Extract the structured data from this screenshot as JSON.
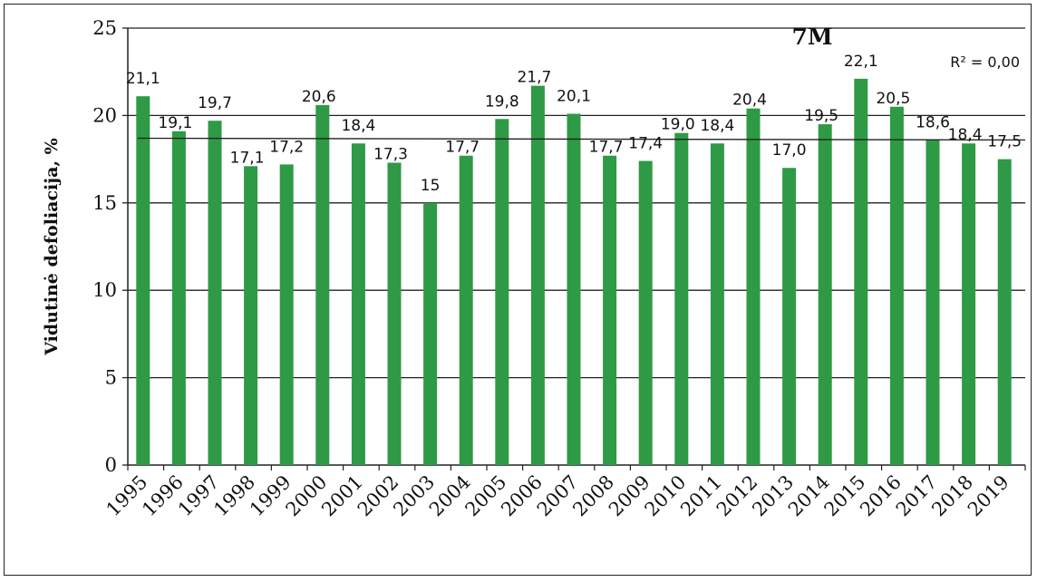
{
  "chart_data": {
    "type": "bar",
    "title": "7M",
    "ylabel": "Vidutinė defoliacija, %",
    "xlabel": "",
    "ylim": [
      0,
      25
    ],
    "yticks": [
      0,
      5,
      10,
      15,
      20,
      25
    ],
    "grid": true,
    "bar_color": "#2e9a45",
    "categories": [
      "1995",
      "1996",
      "1997",
      "1998",
      "1999",
      "2000",
      "2001",
      "2002",
      "2003",
      "2004",
      "2005",
      "2006",
      "2007",
      "2008",
      "2009",
      "2010",
      "2011",
      "2012",
      "2013",
      "2014",
      "2015",
      "2016",
      "2017",
      "2018",
      "2019"
    ],
    "values": [
      21.1,
      19.1,
      19.7,
      17.1,
      17.2,
      20.6,
      18.4,
      17.3,
      15,
      17.7,
      19.8,
      21.7,
      20.1,
      17.7,
      17.4,
      19.0,
      18.4,
      20.4,
      17.0,
      19.5,
      22.1,
      20.5,
      18.6,
      18.4,
      17.5
    ],
    "data_labels": [
      "21,1",
      "19,1",
      "19,7",
      "17,1",
      "17,2",
      "20,6",
      "18,4",
      "17,3",
      "15",
      "17,7",
      "19,8",
      "21,7",
      "20,1",
      "17,7",
      "17,4",
      "19,0",
      "18,4",
      "20,4",
      "17,0",
      "19,5",
      "22,1",
      "20,5",
      "18,6",
      "18,4",
      "17,5"
    ],
    "trendline": {
      "start": 18.7,
      "end": 18.6,
      "label": "R² = 0,00"
    }
  }
}
